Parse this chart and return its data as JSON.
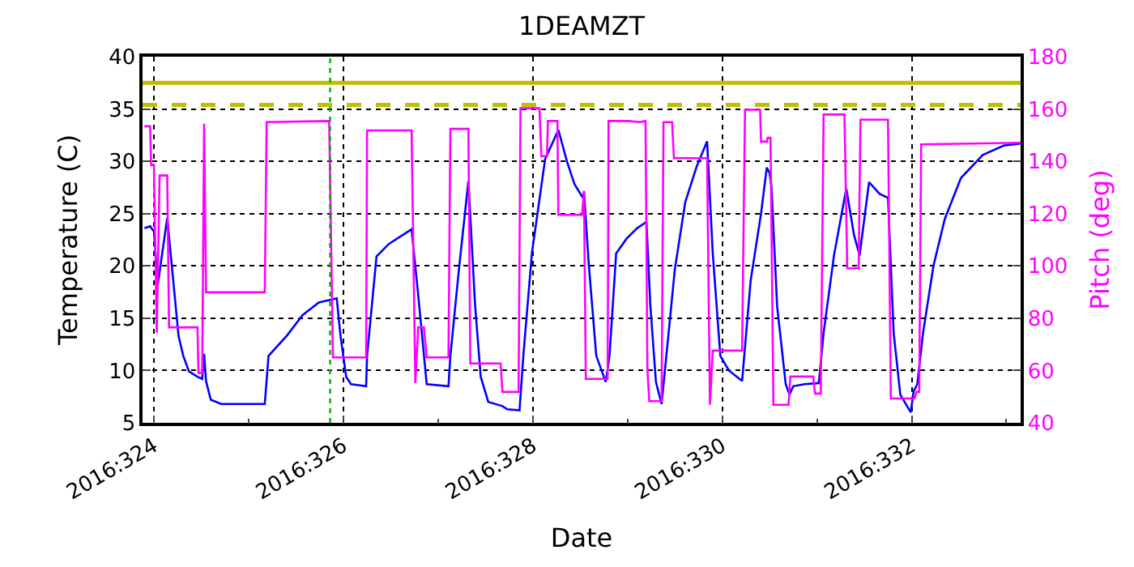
{
  "chart_data": {
    "type": "line",
    "title": "1DEAMZT",
    "xlabel": "Date",
    "ylabel": "Temperature (C)",
    "y2label": "Pitch (deg)",
    "xlim": [
      "2016-11-18T21:07",
      "2016-11-28T03:36"
    ],
    "xticks": [
      {
        "value": "2016-11-19",
        "label": "2016:324"
      },
      {
        "value": "2016-11-20",
        "label": null
      },
      {
        "value": "2016-11-21",
        "label": "2016:326"
      },
      {
        "value": "2016-11-22",
        "label": null
      },
      {
        "value": "2016-11-23",
        "label": "2016:328"
      },
      {
        "value": "2016-11-24",
        "label": null
      },
      {
        "value": "2016-11-25",
        "label": "2016:330"
      },
      {
        "value": "2016-11-26",
        "label": null
      },
      {
        "value": "2016-11-27",
        "label": "2016:332"
      },
      {
        "value": "2016-11-28",
        "label": null
      }
    ],
    "ylim": [
      5,
      40
    ],
    "yticks": [
      5,
      10,
      15,
      20,
      25,
      30,
      35,
      40
    ],
    "y2lim": [
      40,
      180
    ],
    "y2ticks": [
      40,
      60,
      80,
      100,
      120,
      140,
      160,
      180
    ],
    "grid": true,
    "marker": "none",
    "series": [
      {
        "color": "#0000ff",
        "x": [
          "2016-11-18T21:36",
          "2016-11-18T23:02",
          "2016-11-19T00:00",
          "2016-11-19T00:58",
          "2016-11-19T03:22",
          "2016-11-19T06:14",
          "2016-11-19T07:26",
          "2016-11-19T08:53",
          "2016-11-19T11:02",
          "2016-11-19T12:14",
          "2016-11-19T12:43",
          "2016-11-19T13:12",
          "2016-11-19T14:24",
          "2016-11-19T17:02",
          "2016-11-20T04:05",
          "2016-11-20T05:02",
          "2016-11-20T09:36",
          "2016-11-20T13:41",
          "2016-11-20T17:46",
          "2016-11-20T22:19",
          "2016-11-20T23:17",
          "2016-11-21T00:43",
          "2016-11-21T01:55",
          "2016-11-21T05:46",
          "2016-11-21T06:00",
          "2016-11-21T08:24",
          "2016-11-21T11:31",
          "2016-11-21T17:17",
          "2016-11-21T18:58",
          "2016-11-21T21:07",
          "2016-11-22T02:38",
          "2016-11-22T03:07",
          "2016-11-22T05:17",
          "2016-11-22T07:41",
          "2016-11-22T09:22",
          "2016-11-22T10:48",
          "2016-11-22T12:43",
          "2016-11-22T16:19",
          "2016-11-22T17:31",
          "2016-11-22T20:38",
          "2016-11-22T21:36",
          "2016-11-22T23:46",
          "2016-11-23T03:07",
          "2016-11-23T06:29",
          "2016-11-23T08:38",
          "2016-11-23T10:34",
          "2016-11-23T12:43",
          "2016-11-23T12:58",
          "2016-11-23T14:10",
          "2016-11-23T16:05",
          "2016-11-23T18:29",
          "2016-11-23T19:26",
          "2016-11-23T21:07",
          "2016-11-23T23:46",
          "2016-11-24T02:24",
          "2016-11-24T04:48",
          "2016-11-24T05:46",
          "2016-11-24T07:12",
          "2016-11-24T08:38",
          "2016-11-24T09:50",
          "2016-11-24T12:00",
          "2016-11-24T14:38",
          "2016-11-24T17:31",
          "2016-11-24T20:10",
          "2016-11-24T21:36",
          "2016-11-24T23:31",
          "2016-11-25T01:41",
          "2016-11-25T05:02",
          "2016-11-25T07:12",
          "2016-11-25T09:50",
          "2016-11-25T11:17",
          "2016-11-25T12:00",
          "2016-11-25T12:29",
          "2016-11-25T13:55",
          "2016-11-25T16:05",
          "2016-11-25T17:02",
          "2016-11-25T18:00",
          "2016-11-25T20:53",
          "2016-11-26T00:29",
          "2016-11-26T01:41",
          "2016-11-26T04:19",
          "2016-11-26T07:26",
          "2016-11-26T09:22",
          "2016-11-26T10:48",
          "2016-11-26T13:12",
          "2016-11-26T15:50",
          "2016-11-26T18:00",
          "2016-11-26T19:26",
          "2016-11-26T21:07",
          "2016-11-26T23:46",
          "2016-11-27T00:29",
          "2016-11-27T01:26",
          "2016-11-27T02:53",
          "2016-11-27T05:31",
          "2016-11-27T08:24",
          "2016-11-27T12:29",
          "2016-11-27T18:00",
          "2016-11-27T23:17",
          "2016-11-28T03:36"
        ],
        "values": [
          23.6,
          23.8,
          23.3,
          18.2,
          24.6,
          13.3,
          11.4,
          9.9,
          9.4,
          9.2,
          11.6,
          9.0,
          7.2,
          6.8,
          6.8,
          11.4,
          13.3,
          15.3,
          16.5,
          16.9,
          13.3,
          9.4,
          8.7,
          8.5,
          11.4,
          20.9,
          22.1,
          23.5,
          17.2,
          8.7,
          8.5,
          11.4,
          19.7,
          28.1,
          16.3,
          9.4,
          7.0,
          6.6,
          6.3,
          6.2,
          11.4,
          21.2,
          30.2,
          33.0,
          30.0,
          27.8,
          26.5,
          27.1,
          20.2,
          11.4,
          8.9,
          11.4,
          21.2,
          22.6,
          23.6,
          24.2,
          16.3,
          8.9,
          6.8,
          11.4,
          19.7,
          26.1,
          29.5,
          31.9,
          21.2,
          11.4,
          10.0,
          9.0,
          18.6,
          25.0,
          29.4,
          28.9,
          27.5,
          16.1,
          8.7,
          7.7,
          8.5,
          8.7,
          8.8,
          13.6,
          21.0,
          27.4,
          23.0,
          21.0,
          28.0,
          26.9,
          26.5,
          13.6,
          7.7,
          6.0,
          8.0,
          8.7,
          13.6,
          20.0,
          24.5,
          28.4,
          30.6,
          31.5,
          31.7
        ]
      },
      {
        "color": "#ff00ff",
        "axis": "y2",
        "x": [
          "2016-11-18T21:36",
          "2016-11-18T23:02",
          "2016-11-18T23:17",
          "2016-11-19T00:00",
          "2016-11-19T00:43",
          "2016-11-19T01:26",
          "2016-11-19T03:22",
          "2016-11-19T03:50",
          "2016-11-19T11:02",
          "2016-11-19T11:17",
          "2016-11-19T12:14",
          "2016-11-19T12:43",
          "2016-11-19T13:12",
          "2016-11-20T04:05",
          "2016-11-20T04:34",
          "2016-11-20T20:24",
          "2016-11-20T21:22",
          "2016-11-21T05:46",
          "2016-11-21T06:00",
          "2016-11-21T17:17",
          "2016-11-21T18:14",
          "2016-11-21T18:58",
          "2016-11-21T20:24",
          "2016-11-21T21:07",
          "2016-11-22T02:38",
          "2016-11-22T03:07",
          "2016-11-22T07:41",
          "2016-11-22T08:10",
          "2016-11-22T15:50",
          "2016-11-22T16:19",
          "2016-11-22T20:24",
          "2016-11-22T20:53",
          "2016-11-23T01:41",
          "2016-11-23T02:10",
          "2016-11-23T03:36",
          "2016-11-23T03:50",
          "2016-11-23T06:14",
          "2016-11-23T06:29",
          "2016-11-23T12:29",
          "2016-11-23T12:58",
          "2016-11-23T13:26",
          "2016-11-23T18:58",
          "2016-11-23T19:12",
          "2016-11-24T00:14",
          "2016-11-24T03:07",
          "2016-11-24T04:34",
          "2016-11-24T05:02",
          "2016-11-24T05:31",
          "2016-11-24T08:38",
          "2016-11-24T09:07",
          "2016-11-24T11:17",
          "2016-11-24T11:46",
          "2016-11-24T20:10",
          "2016-11-24T20:53",
          "2016-11-24T21:36",
          "2016-11-25T05:02",
          "2016-11-25T05:46",
          "2016-11-25T09:36",
          "2016-11-25T09:50",
          "2016-11-25T11:17",
          "2016-11-25T11:31",
          "2016-11-25T12:14",
          "2016-11-25T12:58",
          "2016-11-25T16:48",
          "2016-11-25T17:17",
          "2016-11-25T23:02",
          "2016-11-25T23:31",
          "2016-11-26T00:58",
          "2016-11-26T01:41",
          "2016-11-26T06:58",
          "2016-11-26T07:41",
          "2016-11-26T10:34",
          "2016-11-26T11:02",
          "2016-11-26T18:00",
          "2016-11-26T18:43",
          "2016-11-27T00:43",
          "2016-11-27T01:12",
          "2016-11-27T01:55",
          "2016-11-27T02:24",
          "2016-11-28T03:36"
        ],
        "values": [
          153.4,
          153.4,
          138.6,
          138.6,
          74.5,
          134.6,
          134.6,
          76.5,
          76.5,
          59.1,
          59.1,
          154.4,
          89.9,
          89.9,
          155.0,
          155.4,
          65.0,
          65.0,
          151.8,
          151.8,
          55.2,
          76.5,
          76.5,
          65.0,
          65.0,
          152.4,
          152.4,
          62.7,
          62.7,
          51.8,
          51.8,
          160.3,
          160.3,
          142.0,
          142.0,
          155.4,
          155.4,
          119.5,
          119.5,
          128.7,
          56.8,
          56.8,
          155.4,
          155.4,
          155.0,
          155.4,
          60.7,
          48.3,
          48.3,
          155.0,
          155.0,
          141.2,
          141.2,
          46.9,
          67.6,
          67.6,
          159.7,
          159.7,
          147.5,
          147.5,
          149.0,
          149.0,
          46.9,
          46.9,
          57.7,
          57.7,
          51.2,
          51.2,
          157.9,
          157.9,
          99.1,
          99.1,
          155.9,
          155.9,
          49.3,
          49.3,
          51.8,
          51.8,
          146.5,
          147.1
        ]
      }
    ],
    "ref_lines": [
      {
        "axis": "y",
        "value": 37.5,
        "color": "#bfbf00",
        "line_style": "solid"
      },
      {
        "axis": "y",
        "value": 35.4,
        "color": "#bfbf00",
        "line_style": "dashed"
      },
      {
        "axis": "x",
        "value": "2016-11-20T20:38",
        "color": "#00aa00",
        "line_style": "dotted"
      }
    ]
  }
}
